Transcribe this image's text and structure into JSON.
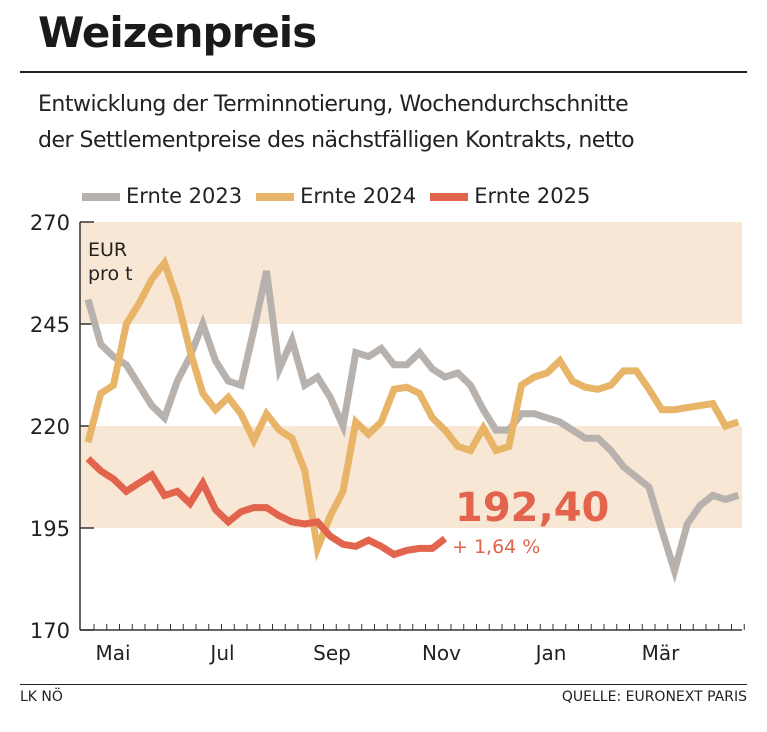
{
  "title": "Weizenpreis",
  "subtitle_lines": [
    "Entwicklung der Terminnotierung, Wochendurchschnitte",
    "der Settlementpreise des nächstfälligen Kontrakts, netto"
  ],
  "footer": {
    "left": "LK NÖ",
    "right": "QUELLE: EURONEXT PARIS"
  },
  "chart_data": {
    "type": "line",
    "unit_label": [
      "EUR",
      "pro t"
    ],
    "ylim": [
      170,
      270
    ],
    "yticks": [
      170,
      195,
      220,
      245,
      270
    ],
    "ytick_labels": [
      "170",
      "195",
      "220",
      "245",
      "270"
    ],
    "month_labels": [
      "Mai",
      "Jul",
      "Sep",
      "Nov",
      "Jan",
      "Mär"
    ],
    "x_unit": "weeks",
    "bands": [
      [
        195,
        220
      ],
      [
        245,
        270
      ]
    ],
    "colors": {
      "band": "#f8e7d5",
      "Ernte 2023": "#b7b2ae",
      "Ernte 2024": "#e8b468",
      "Ernte 2025": "#e2644c"
    },
    "annotation": {
      "value": "192,40",
      "change": "+ 1,64 %"
    },
    "series": [
      {
        "name": "Ernte 2023",
        "values": [
          251,
          240,
          237,
          235,
          230,
          225,
          222,
          231,
          237,
          245,
          236,
          231,
          230,
          243.5,
          258,
          234,
          241,
          230,
          232,
          227,
          220,
          238,
          237,
          239,
          235,
          235,
          238,
          234,
          232,
          233,
          230,
          224,
          219,
          219,
          223,
          223,
          222,
          221,
          219,
          217,
          217,
          214,
          210,
          207.5,
          205,
          194.5,
          184.5,
          196,
          200.5,
          203,
          202,
          203
        ]
      },
      {
        "name": "Ernte 2024",
        "values": [
          216,
          228,
          230,
          245,
          250,
          256,
          260,
          251,
          238.5,
          228,
          224,
          227,
          223,
          216.5,
          223,
          219,
          217,
          209,
          190,
          198,
          204,
          221,
          218,
          221,
          229,
          229.5,
          228,
          222,
          219,
          215,
          214,
          219.5,
          214,
          215,
          230,
          232,
          233,
          236,
          231,
          229.5,
          229,
          230,
          233.5,
          233.5,
          229,
          224,
          224,
          224.5,
          225,
          225.5,
          220,
          221
        ]
      },
      {
        "name": "Ernte 2025",
        "values": [
          212,
          209,
          207,
          204,
          206,
          208,
          203,
          204,
          201,
          206,
          199.5,
          196.5,
          199,
          200,
          200,
          198,
          196.5,
          196,
          196.5,
          193,
          191,
          190.5,
          192,
          190.5,
          188.5,
          189.5,
          190,
          190,
          192.4
        ]
      }
    ]
  }
}
